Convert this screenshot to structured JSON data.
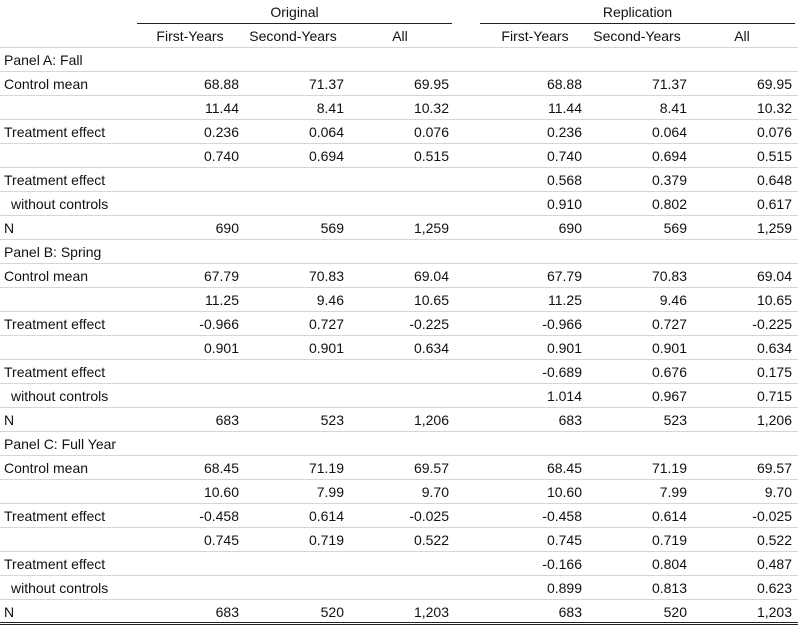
{
  "header": {
    "original": "Original",
    "replication": "Replication",
    "columns": [
      "First-Years",
      "Second-Years",
      "All",
      "First-Years",
      "Second-Years",
      "All"
    ]
  },
  "rows": [
    {
      "label": "Panel A: Fall",
      "values": [
        "",
        "",
        "",
        "",
        "",
        ""
      ]
    },
    {
      "label": "Control mean",
      "values": [
        "68.88",
        "71.37",
        "69.95",
        "68.88",
        "71.37",
        "69.95"
      ]
    },
    {
      "label": "",
      "values": [
        "11.44",
        "8.41",
        "10.32",
        "11.44",
        "8.41",
        "10.32"
      ]
    },
    {
      "label": "Treatment effect",
      "values": [
        "0.236",
        "0.064",
        "0.076",
        "0.236",
        "0.064",
        "0.076"
      ]
    },
    {
      "label": "",
      "values": [
        "0.740",
        "0.694",
        "0.515",
        "0.740",
        "0.694",
        "0.515"
      ]
    },
    {
      "label": "Treatment effect",
      "values": [
        "",
        "",
        "",
        "0.568",
        "0.379",
        "0.648"
      ]
    },
    {
      "label": "without controls",
      "indent": true,
      "values": [
        "",
        "",
        "",
        "0.910",
        "0.802",
        "0.617"
      ]
    },
    {
      "label": "N",
      "values": [
        "690",
        "569",
        "1,259",
        "690",
        "569",
        "1,259"
      ]
    },
    {
      "label": "Panel B: Spring",
      "values": [
        "",
        "",
        "",
        "",
        "",
        ""
      ]
    },
    {
      "label": "Control mean",
      "values": [
        "67.79",
        "70.83",
        "69.04",
        "67.79",
        "70.83",
        "69.04"
      ]
    },
    {
      "label": "",
      "values": [
        "11.25",
        "9.46",
        "10.65",
        "11.25",
        "9.46",
        "10.65"
      ]
    },
    {
      "label": "Treatment effect",
      "values": [
        "-0.966",
        "0.727",
        "-0.225",
        "-0.966",
        "0.727",
        "-0.225"
      ]
    },
    {
      "label": "",
      "values": [
        "0.901",
        "0.901",
        "0.634",
        "0.901",
        "0.901",
        "0.634"
      ]
    },
    {
      "label": "Treatment effect",
      "values": [
        "",
        "",
        "",
        "-0.689",
        "0.676",
        "0.175"
      ]
    },
    {
      "label": "without controls",
      "indent": true,
      "values": [
        "",
        "",
        "",
        "1.014",
        "0.967",
        "0.715"
      ]
    },
    {
      "label": "N",
      "values": [
        "683",
        "523",
        "1,206",
        "683",
        "523",
        "1,206"
      ]
    },
    {
      "label": "Panel C: Full Year",
      "values": [
        "",
        "",
        "",
        "",
        "",
        ""
      ]
    },
    {
      "label": "Control mean",
      "values": [
        "68.45",
        "71.19",
        "69.57",
        "68.45",
        "71.19",
        "69.57"
      ]
    },
    {
      "label": "",
      "values": [
        "10.60",
        "7.99",
        "9.70",
        "10.60",
        "7.99",
        "9.70"
      ]
    },
    {
      "label": "Treatment effect",
      "values": [
        "-0.458",
        "0.614",
        "-0.025",
        "-0.458",
        "0.614",
        "-0.025"
      ]
    },
    {
      "label": "",
      "values": [
        "0.745",
        "0.719",
        "0.522",
        "0.745",
        "0.719",
        "0.522"
      ]
    },
    {
      "label": "Treatment effect",
      "values": [
        "",
        "",
        "",
        "-0.166",
        "0.804",
        "0.487"
      ]
    },
    {
      "label": "without controls",
      "indent": true,
      "values": [
        "",
        "",
        "",
        "0.899",
        "0.813",
        "0.623"
      ]
    },
    {
      "label": "N",
      "values": [
        "683",
        "520",
        "1,203",
        "683",
        "520",
        "1,203"
      ]
    }
  ]
}
